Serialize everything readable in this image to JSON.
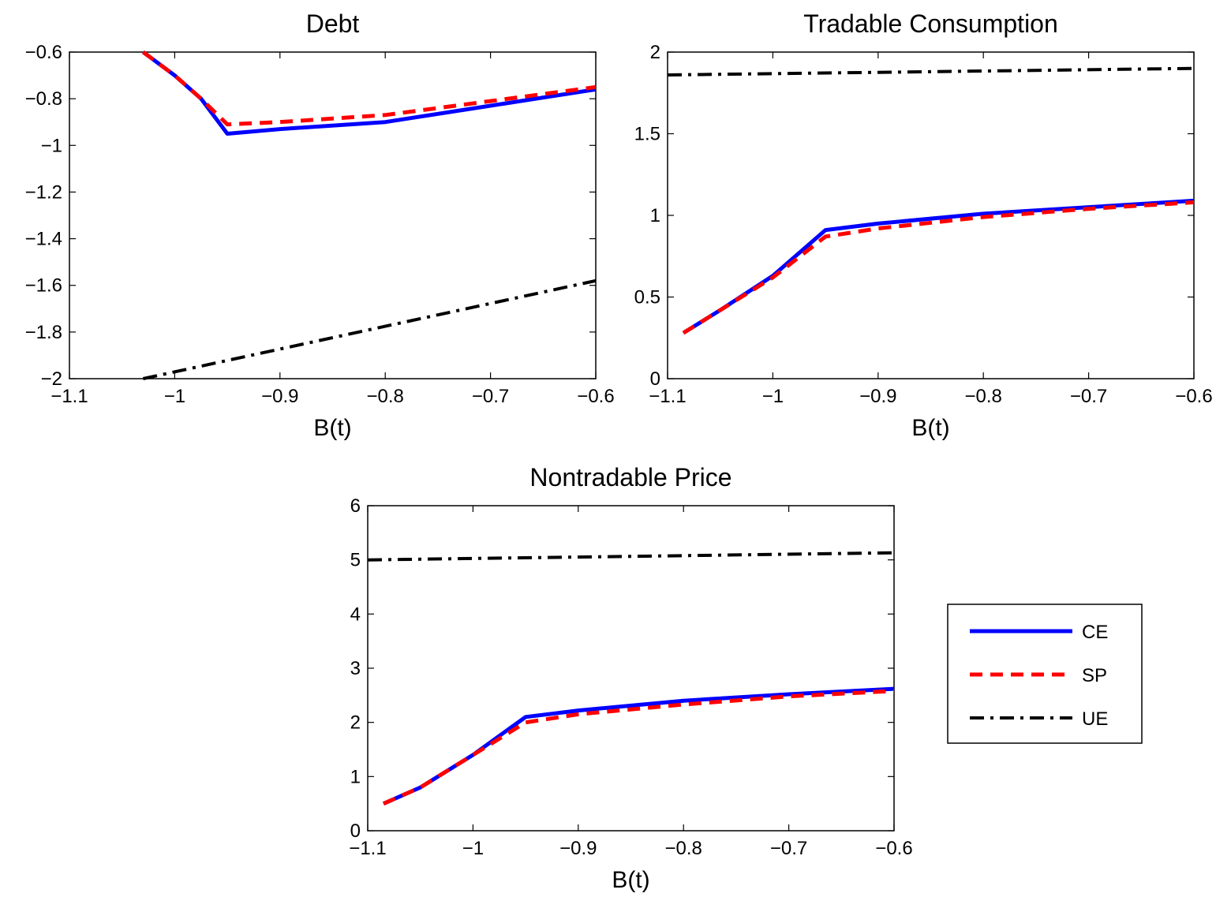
{
  "figure": {
    "legend": {
      "placement": "lower-right",
      "entries": [
        {
          "label": "CE",
          "color": "#0000ff",
          "style": "solid"
        },
        {
          "label": "SP",
          "color": "#ff0000",
          "style": "dashed"
        },
        {
          "label": "UE",
          "color": "#000000",
          "style": "dash-dot"
        }
      ]
    }
  },
  "chart_data": [
    {
      "id": "debt",
      "type": "line",
      "title": "Debt",
      "xlabel": "B(t)",
      "ylabel": "",
      "xlim": [
        -1.1,
        -0.6
      ],
      "ylim": [
        -2,
        -0.6
      ],
      "xticks": [
        -1.1,
        -1,
        -0.9,
        -0.8,
        -0.7,
        -0.6
      ],
      "xtick_labels": [
        "−1.1",
        "−1",
        "−0.9",
        "−0.8",
        "−0.7",
        "−0.6"
      ],
      "yticks": [
        -2,
        -1.8,
        -1.6,
        -1.4,
        -1.2,
        -1,
        -0.8,
        -0.6
      ],
      "ytick_labels": [
        "−2",
        "−1.8",
        "−1.6",
        "−1.4",
        "−1.2",
        "−1",
        "−0.8",
        "−0.6"
      ],
      "grid": false,
      "series": [
        {
          "name": "CE",
          "x": [
            -1.03,
            -1.0,
            -0.975,
            -0.95,
            -0.9,
            -0.8,
            -0.7,
            -0.6
          ],
          "y": [
            -0.6,
            -0.7,
            -0.8,
            -0.95,
            -0.93,
            -0.9,
            -0.83,
            -0.76
          ]
        },
        {
          "name": "SP",
          "x": [
            -1.03,
            -1.0,
            -0.975,
            -0.95,
            -0.9,
            -0.8,
            -0.7,
            -0.6
          ],
          "y": [
            -0.6,
            -0.7,
            -0.8,
            -0.91,
            -0.9,
            -0.87,
            -0.81,
            -0.75
          ]
        },
        {
          "name": "UE",
          "x": [
            -1.03,
            -0.6
          ],
          "y": [
            -2.0,
            -1.58
          ]
        }
      ]
    },
    {
      "id": "tradable-consumption",
      "type": "line",
      "title": "Tradable Consumption",
      "xlabel": "B(t)",
      "ylabel": "",
      "xlim": [
        -1.1,
        -0.6
      ],
      "ylim": [
        0,
        2
      ],
      "xticks": [
        -1.1,
        -1,
        -0.9,
        -0.8,
        -0.7,
        -0.6
      ],
      "xtick_labels": [
        "−1.1",
        "−1",
        "−0.9",
        "−0.8",
        "−0.7",
        "−0.6"
      ],
      "yticks": [
        0,
        0.5,
        1,
        1.5,
        2
      ],
      "ytick_labels": [
        "0",
        "0.5",
        "1",
        "1.5",
        "2"
      ],
      "grid": false,
      "series": [
        {
          "name": "CE",
          "x": [
            -1.085,
            -1.05,
            -1.0,
            -0.95,
            -0.9,
            -0.8,
            -0.7,
            -0.6
          ],
          "y": [
            0.28,
            0.42,
            0.63,
            0.91,
            0.95,
            1.01,
            1.05,
            1.09
          ]
        },
        {
          "name": "SP",
          "x": [
            -1.085,
            -1.05,
            -1.0,
            -0.95,
            -0.9,
            -0.8,
            -0.7,
            -0.6
          ],
          "y": [
            0.28,
            0.42,
            0.62,
            0.87,
            0.92,
            0.99,
            1.04,
            1.08
          ]
        },
        {
          "name": "UE",
          "x": [
            -1.1,
            -0.6
          ],
          "y": [
            1.86,
            1.9
          ]
        }
      ]
    },
    {
      "id": "nontradable-price",
      "type": "line",
      "title": "Nontradable Price",
      "xlabel": "B(t)",
      "ylabel": "",
      "xlim": [
        -1.1,
        -0.6
      ],
      "ylim": [
        0,
        6
      ],
      "xticks": [
        -1.1,
        -1,
        -0.9,
        -0.8,
        -0.7,
        -0.6
      ],
      "xtick_labels": [
        "−1.1",
        "−1",
        "−0.9",
        "−0.8",
        "−0.7",
        "−0.6"
      ],
      "yticks": [
        0,
        1,
        2,
        3,
        4,
        5,
        6
      ],
      "ytick_labels": [
        "0",
        "1",
        "2",
        "3",
        "4",
        "5",
        "6"
      ],
      "grid": false,
      "series": [
        {
          "name": "CE",
          "x": [
            -1.085,
            -1.05,
            -1.0,
            -0.95,
            -0.9,
            -0.8,
            -0.7,
            -0.6
          ],
          "y": [
            0.5,
            0.8,
            1.4,
            2.1,
            2.22,
            2.4,
            2.52,
            2.62
          ]
        },
        {
          "name": "SP",
          "x": [
            -1.085,
            -1.05,
            -1.0,
            -0.95,
            -0.9,
            -0.8,
            -0.7,
            -0.6
          ],
          "y": [
            0.5,
            0.8,
            1.4,
            2.0,
            2.15,
            2.33,
            2.48,
            2.58
          ]
        },
        {
          "name": "UE",
          "x": [
            -1.1,
            -0.6
          ],
          "y": [
            5.0,
            5.13
          ]
        }
      ]
    }
  ]
}
